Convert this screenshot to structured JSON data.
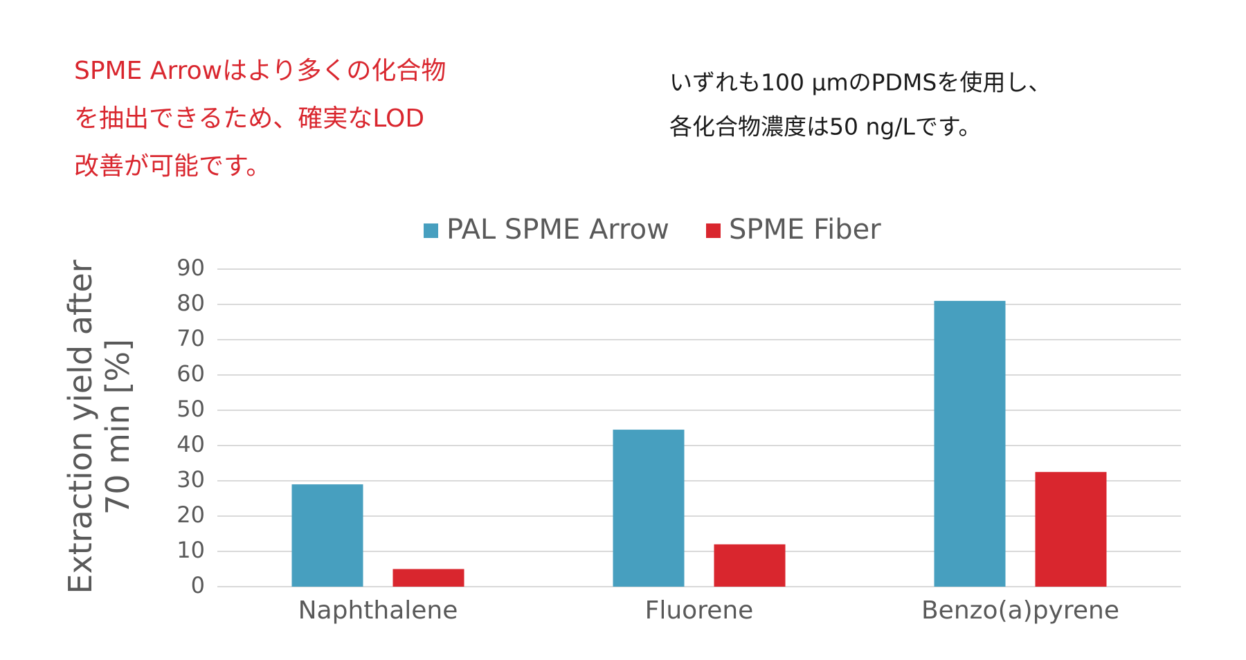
{
  "chart_data": {
    "type": "bar",
    "annotations": [
      {
        "lines": [
          "SPME Arrowはより多くの化合物",
          "を抽出できるため、確実なLOD",
          "改善が可能です。"
        ],
        "color": "#d9262e"
      },
      {
        "lines": [
          "いずれも100 µmのPDMSを使用し、",
          "各化合物濃度は50 ng/Lです。"
        ],
        "color": "#1a1a1a"
      }
    ],
    "ylabel": [
      "Extraction yield after",
      "70 min [%]"
    ],
    "categories": [
      "Naphthalene",
      "Fluorene",
      "Benzo(a)pyrene"
    ],
    "series": [
      {
        "name": "PAL SPME Arrow",
        "color": "#479fbf",
        "values": [
          29,
          44.5,
          81
        ]
      },
      {
        "name": "SPME Fiber",
        "color": "#d9262e",
        "values": [
          5,
          12,
          32.5
        ]
      }
    ],
    "ylim": [
      0,
      90
    ],
    "yticks": [
      0,
      10,
      20,
      30,
      40,
      50,
      60,
      70,
      80,
      90
    ],
    "grid": true,
    "legend": "top"
  }
}
